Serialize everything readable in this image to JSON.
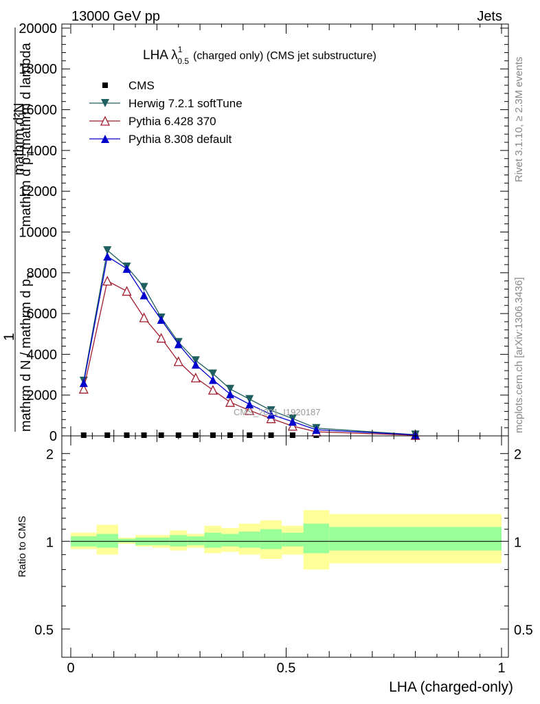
{
  "header": {
    "left": "13000 GeV pp",
    "right": "Jets"
  },
  "side_labels": {
    "rivet": "Rivet 3.1.10, ≥ 2.3M events",
    "mcplots": "mcplots.cern.ch [arXiv:1306.3436]"
  },
  "watermark": "CMS_2021_I1920187",
  "chart_data": [
    {
      "type": "line",
      "title": "LHA λ",
      "title_sup": "1",
      "title_sub": "0.5",
      "title_suffix": "(charged only) (CMS jet substructure)",
      "ylabel_top": "1",
      "ylabel_bottom": "mathrm d N / mathrm d p",
      "ylabel_numerator": "mathrm d²N",
      "ylabel_denominator": "mathrm d p",
      "ylabel_sub": "T",
      "ylabel_tail": "mathrm d lambda",
      "xlim": [
        0,
        1
      ],
      "ylim": [
        0,
        20200
      ],
      "yticks": [
        0,
        2000,
        4000,
        6000,
        8000,
        10000,
        12000,
        14000,
        16000,
        18000,
        20000
      ],
      "ytick_labels": [
        "0",
        "2000",
        "4000",
        "6000",
        "8000",
        "10000",
        "12000",
        "14000",
        "16000",
        "18000",
        "20000"
      ],
      "legend_position": "top-left",
      "x": [
        0.03,
        0.085,
        0.13,
        0.17,
        0.21,
        0.25,
        0.29,
        0.33,
        0.37,
        0.415,
        0.465,
        0.515,
        0.57,
        0.8
      ],
      "series": [
        {
          "name": "CMS",
          "color": "#000000",
          "marker": "square",
          "values": [
            0,
            0,
            0,
            0,
            0,
            0,
            0,
            0,
            0,
            0,
            0,
            0,
            0,
            0
          ]
        },
        {
          "name": "Herwig 7.2.1 softTune",
          "color": "#1f5f5f",
          "marker": "triangle-down",
          "values": [
            2700,
            9100,
            8300,
            7300,
            5800,
            4600,
            3700,
            3050,
            2300,
            1800,
            1250,
            850,
            380,
            60
          ]
        },
        {
          "name": "Pythia 6.428 370",
          "color": "#a01c2c",
          "marker": "triangle-up-open",
          "values": [
            2300,
            7600,
            7100,
            5800,
            4800,
            3650,
            2850,
            2250,
            1650,
            1250,
            850,
            480,
            200,
            30
          ]
        },
        {
          "name": "Pythia 8.308 default",
          "color": "#0000cc",
          "marker": "triangle-up",
          "values": [
            2600,
            8800,
            8200,
            6900,
            5700,
            4500,
            3500,
            2750,
            2050,
            1550,
            1050,
            700,
            300,
            50
          ]
        }
      ]
    },
    {
      "type": "area",
      "ylabel": "Ratio to CMS",
      "xlabel": "LHA (charged-only)",
      "xlim": [
        0,
        1
      ],
      "ylim": [
        0.4,
        2.3
      ],
      "log_scale": true,
      "yticks": [
        0.5,
        1,
        2
      ],
      "ytick_labels": [
        "0.5",
        "1",
        "2"
      ],
      "xticks": [
        0,
        0.5,
        1
      ],
      "xtick_labels": [
        "0",
        "0.5",
        "1"
      ],
      "reference_line": 1,
      "bins": [
        {
          "lo": 0.0,
          "hi": 0.06,
          "inner": [
            0.96,
            1.04
          ],
          "outer": [
            0.94,
            1.07
          ]
        },
        {
          "lo": 0.06,
          "hi": 0.11,
          "inner": [
            0.95,
            1.06
          ],
          "outer": [
            0.9,
            1.14
          ]
        },
        {
          "lo": 0.11,
          "hi": 0.15,
          "inner": [
            0.99,
            1.02
          ],
          "outer": [
            0.98,
            1.03
          ]
        },
        {
          "lo": 0.15,
          "hi": 0.19,
          "inner": [
            0.97,
            1.03
          ],
          "outer": [
            0.96,
            1.05
          ]
        },
        {
          "lo": 0.19,
          "hi": 0.23,
          "inner": [
            0.97,
            1.03
          ],
          "outer": [
            0.95,
            1.05
          ]
        },
        {
          "lo": 0.23,
          "hi": 0.27,
          "inner": [
            0.96,
            1.05
          ],
          "outer": [
            0.93,
            1.09
          ]
        },
        {
          "lo": 0.27,
          "hi": 0.31,
          "inner": [
            0.97,
            1.04
          ],
          "outer": [
            0.95,
            1.06
          ]
        },
        {
          "lo": 0.31,
          "hi": 0.35,
          "inner": [
            0.95,
            1.07
          ],
          "outer": [
            0.91,
            1.13
          ]
        },
        {
          "lo": 0.35,
          "hi": 0.39,
          "inner": [
            0.96,
            1.06
          ],
          "outer": [
            0.92,
            1.11
          ]
        },
        {
          "lo": 0.39,
          "hi": 0.44,
          "inner": [
            0.95,
            1.08
          ],
          "outer": [
            0.9,
            1.15
          ]
        },
        {
          "lo": 0.44,
          "hi": 0.49,
          "inner": [
            0.94,
            1.1
          ],
          "outer": [
            0.87,
            1.18
          ]
        },
        {
          "lo": 0.49,
          "hi": 0.54,
          "inner": [
            0.96,
            1.07
          ],
          "outer": [
            0.9,
            1.13
          ]
        },
        {
          "lo": 0.54,
          "hi": 0.6,
          "inner": [
            0.91,
            1.15
          ],
          "outer": [
            0.8,
            1.28
          ]
        },
        {
          "lo": 0.6,
          "hi": 1.0,
          "inner": [
            0.93,
            1.12
          ],
          "outer": [
            0.84,
            1.24
          ]
        }
      ],
      "colors": {
        "inner": "#99ff99",
        "outer": "#ffff99",
        "line": "#000000"
      }
    }
  ]
}
